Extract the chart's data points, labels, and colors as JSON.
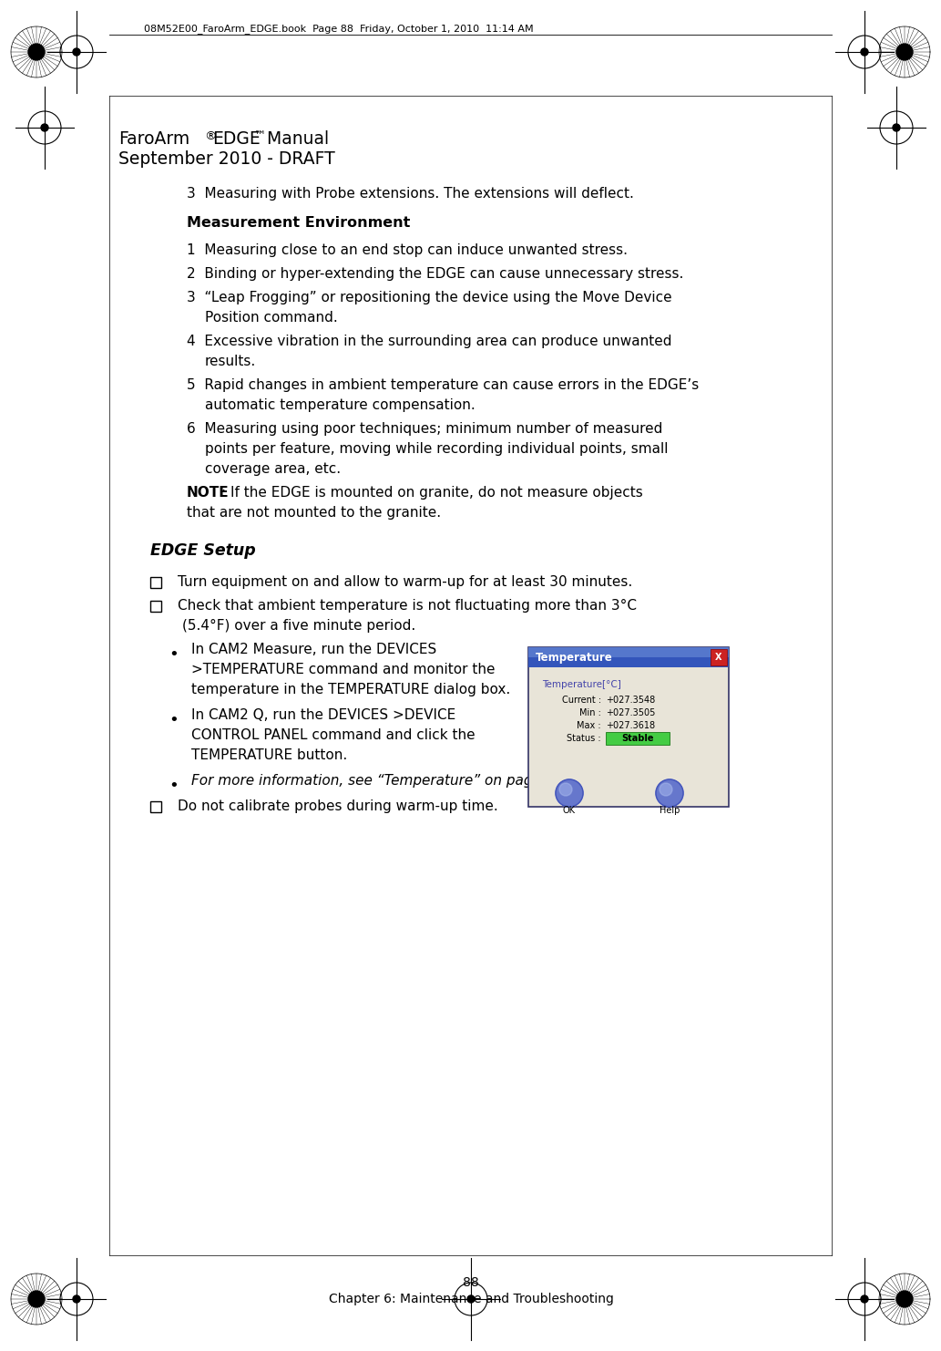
{
  "bg_color": "#ffffff",
  "header_text": "08M52E00_FaroArm_EDGE.book  Page 88  Friday, October 1, 2010  11:14 AM",
  "title_line1_a": "FaroArm",
  "title_line1_b": "®",
  "title_line1_c": "EDGE",
  "title_line1_d": "™",
  "title_line1_e": " Manual",
  "title_line2": "September 2010 - DRAFT",
  "item3_text": "3  Measuring with Probe extensions. The extensions will deflect.",
  "section_header": "Measurement Environment",
  "items": [
    "1  Measuring close to an end stop can induce unwanted stress.",
    "2  Binding or hyper-extending the EDGE can cause unnecessary stress.",
    "3  “Leap Frogging” or repositioning the device using the Move Device\n       Position command.",
    "4  Excessive vibration in the surrounding area can produce unwanted\n       results.",
    "5  Rapid changes in ambient temperature can cause errors in the EDGE’s\n       automatic temperature compensation.",
    "6  Measuring using poor techniques; minimum number of measured\n       points per feature, moving while recording individual points, small\n       coverage area, etc."
  ],
  "note_label": "NOTE",
  "note_line1": ": If the EDGE is mounted on granite, do not measure objects",
  "note_line2": "that are not mounted to the granite.",
  "edge_setup_title": "EDGE Setup",
  "checkbox_items": [
    [
      "Turn equipment on and allow to warm-up for at least 30 minutes."
    ],
    [
      "Check that ambient temperature is not fluctuating more than 3°C",
      "(5.4°F) over a five minute period."
    ]
  ],
  "bullet_items": [
    [
      "In CAM2 Measure, run the DEVICES",
      ">TEMPERATURE command and monitor the",
      "temperature in the TEMPERATURE dialog box."
    ],
    [
      "In CAM2 Q, run the DEVICES >DEVICE",
      "CONTROL PANEL command and click the",
      "TEMPERATURE button."
    ],
    [
      "For more information, see “Temperature” on page 114.",
      "italic"
    ]
  ],
  "final_checkbox": "Do not calibrate probes during warm-up time.",
  "footer_page": "88",
  "footer_chapter": "Chapter 6: Maintenance and Troubleshooting",
  "temp_dialog": {
    "title": "Temperature",
    "label": "Temperature[°C]",
    "current_label": "Current :",
    "current_val": "+027.3548",
    "min_label": "Min :",
    "min_val": "+027.3505",
    "max_label": "Max :",
    "max_val": "+027.3618",
    "status_label": "Status :",
    "status_val": "Stable",
    "ok_label": "OK",
    "help_label": "Help"
  },
  "font_size_body": 11.0,
  "font_size_title": 13.5,
  "font_size_section_title": 13.5,
  "font_size_footer": 10,
  "font_size_header_bar": 8.0,
  "text_color": "#000000"
}
